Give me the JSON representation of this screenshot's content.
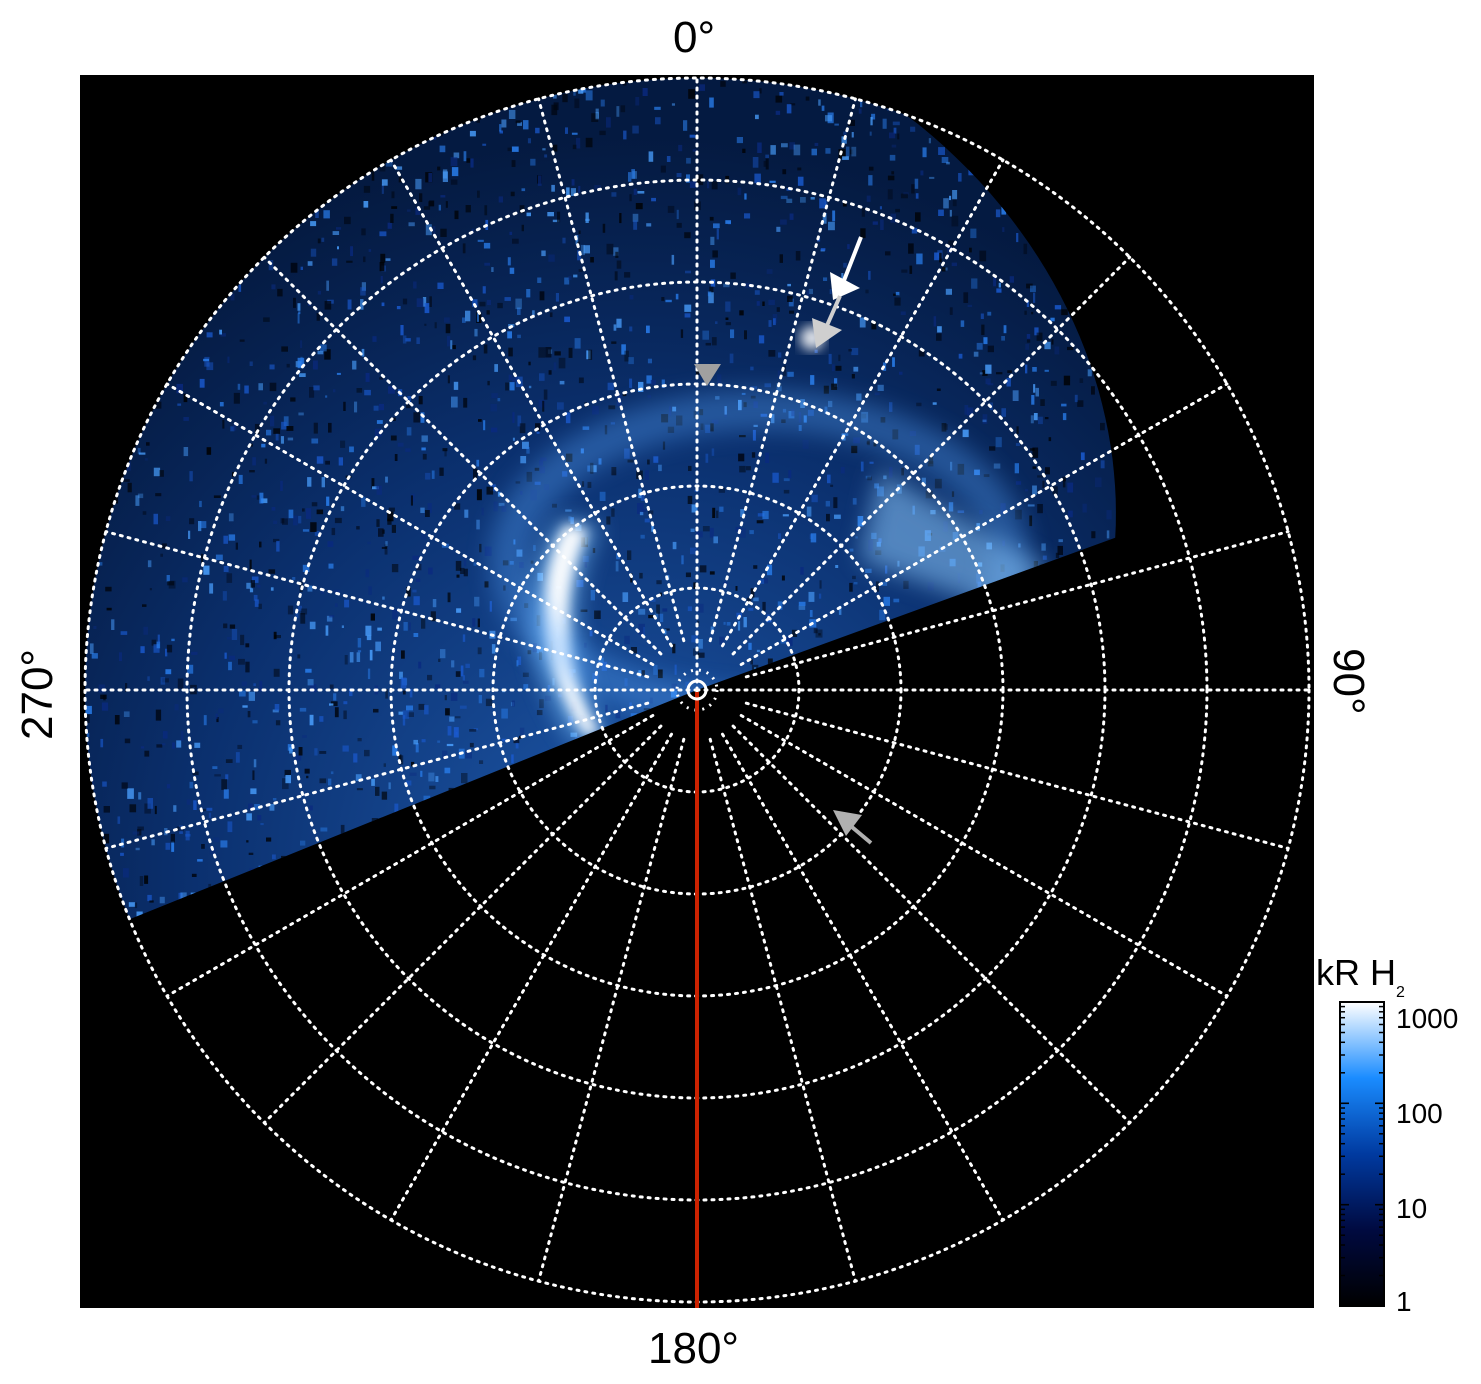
{
  "figure": {
    "axis_labels": {
      "top": "0°",
      "right": "90°",
      "bottom": "180°",
      "left": "270°"
    },
    "colorbar": {
      "title_main": "kR H",
      "title_sub": "2",
      "ticks": [
        "1000",
        "100",
        "10",
        "1"
      ],
      "scale": "log",
      "range": [
        1,
        1000
      ],
      "colors": [
        "#000000",
        "#000a40",
        "#003aa0",
        "#1a8cff",
        "#ffffff"
      ]
    },
    "colors": {
      "background": "#000000",
      "grid": "#ffffff",
      "meridian_line": "#cc2200",
      "arrow_bright": "#ffffff",
      "arrow_dim": "#a0a0a0"
    },
    "grid": {
      "rings": 6,
      "spokes_degrees": 15,
      "style": "dotted"
    },
    "annotation_arrows": [
      "arrow-white-upper",
      "arrow-gray-upper-right",
      "arrow-gray-center",
      "arrow-gray-lower-right"
    ]
  }
}
